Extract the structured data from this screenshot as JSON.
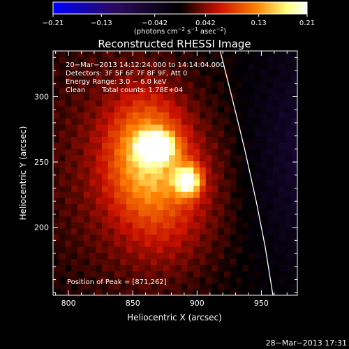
{
  "chart_data": {
    "type": "heatmap",
    "title": "Reconstructed RHESSI Image",
    "xlabel": "Heliocentric X (arcsec)",
    "ylabel": "Heliocentric Y (arcsec)",
    "xlim": [
      788,
      978
    ],
    "ylim": [
      148,
      335
    ],
    "x_ticks": [
      800,
      850,
      900,
      950
    ],
    "y_ticks": [
      200,
      250,
      300
    ],
    "colorbar": {
      "min": -0.21,
      "max": 0.21,
      "tick_values": [
        -0.21,
        -0.13,
        -0.042,
        0.042,
        0.13,
        0.21
      ],
      "tick_labels": [
        "−0.21",
        "−0.13",
        "−0.042",
        "0.042",
        "0.13",
        "0.21"
      ],
      "unit_main": "(photons cm",
      "unit_sup1": "−2",
      "unit_mid": " s",
      "unit_sup2": "−1",
      "unit_mid2": " asec",
      "unit_sup3": "−2",
      "unit_end": ")",
      "colors": [
        "#0000ff",
        "#2a0a5a",
        "#000000",
        "#c81000",
        "#ff8000",
        "#ffff80",
        "#ffffff"
      ]
    },
    "info_lines": [
      "20−Mar−2013 14:12:24.000 to 14:14:04.000",
      "Detectors: 3F 5F 6F 7F 8F 9F, Att 0",
      "Energy Range: 3.0 − 6.0 keV"
    ],
    "clean_label": "Clean",
    "total_counts_label": "Total counts: 1.78E+04",
    "peak_label": "Position of Peak = [871,262]",
    "peak": [
      871,
      262
    ],
    "sources": [
      {
        "x": 868,
        "y": 262,
        "sx": 9,
        "sy": 7,
        "amp": 0.21
      },
      {
        "x": 893,
        "y": 236,
        "sx": 7,
        "sy": 8,
        "amp": 0.17
      },
      {
        "x": 860,
        "y": 258,
        "sx": 20,
        "sy": 30,
        "amp": 0.1
      },
      {
        "x": 878,
        "y": 225,
        "sx": 28,
        "sy": 40,
        "amp": 0.06
      }
    ],
    "limb_curve": [
      [
        918,
        335
      ],
      [
        927,
        300
      ],
      [
        937,
        260
      ],
      [
        946,
        220
      ],
      [
        953,
        185
      ],
      [
        959,
        148
      ]
    ],
    "timestamp": "28−Mar−2013 17:31"
  }
}
